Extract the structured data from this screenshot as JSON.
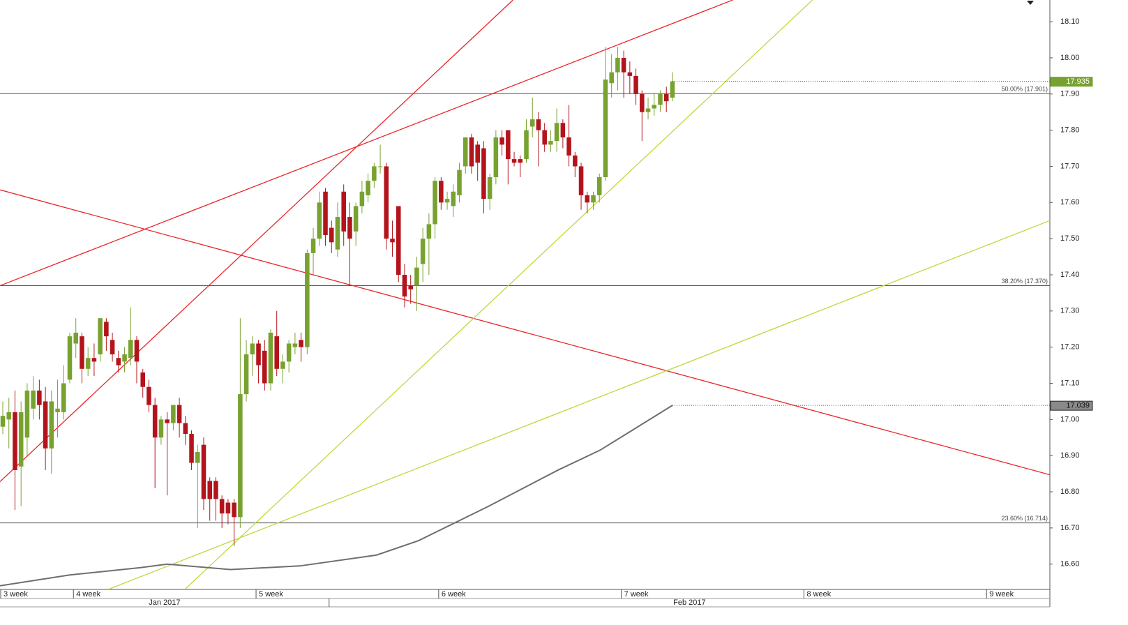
{
  "chart_data": {
    "type": "candlestick",
    "up_color": "#78a22f",
    "down_color": "#b3141c",
    "open": [
      16.98,
      17.0,
      17.02,
      16.87,
      16.95,
      17.03,
      17.08,
      17.05,
      16.92,
      17.02,
      17.02,
      17.11,
      17.21,
      17.23,
      17.14,
      17.17,
      17.18,
      17.27,
      17.22,
      17.17,
      17.16,
      17.17,
      17.22,
      17.13,
      17.09,
      17.04,
      16.95,
      17.0,
      16.99,
      17.04,
      16.99,
      16.96,
      16.88,
      16.93,
      16.83,
      16.83,
      16.78,
      16.77,
      16.77,
      16.73,
      17.07,
      17.18,
      17.21,
      17.19,
      17.1,
      17.23,
      17.14,
      17.16,
      17.2,
      17.22,
      17.2,
      17.46,
      17.5,
      17.63,
      17.53,
      17.47,
      17.63,
      17.56,
      17.52,
      17.59,
      17.62,
      17.66,
      17.7,
      17.7,
      17.5,
      17.59,
      17.4,
      17.37,
      17.37,
      17.43,
      17.5,
      17.54,
      17.66,
      17.6,
      17.59,
      17.62,
      17.7,
      17.78,
      17.76,
      17.75,
      17.61,
      17.67,
      17.78,
      17.8,
      17.72,
      17.72,
      17.72,
      17.81,
      17.83,
      17.8,
      17.76,
      17.77,
      17.82,
      17.78,
      17.73,
      17.7,
      17.62,
      17.6,
      17.62,
      17.67,
      17.93,
      17.96,
      18.0,
      17.96,
      17.95,
      17.9,
      17.85,
      17.86,
      17.87,
      17.9,
      17.89
    ],
    "high": [
      17.05,
      17.06,
      17.08,
      17.05,
      17.1,
      17.12,
      17.11,
      17.09,
      17.08,
      17.11,
      17.15,
      17.24,
      17.28,
      17.24,
      17.2,
      17.21,
      17.28,
      17.28,
      17.24,
      17.19,
      17.2,
      17.31,
      17.23,
      17.14,
      17.11,
      17.06,
      17.01,
      17.02,
      17.04,
      17.06,
      17.01,
      16.97,
      16.93,
      16.95,
      16.84,
      16.84,
      16.79,
      16.78,
      16.78,
      17.28,
      17.22,
      17.23,
      17.22,
      17.22,
      17.25,
      17.3,
      17.18,
      17.22,
      17.24,
      17.24,
      17.47,
      17.53,
      17.63,
      17.64,
      17.55,
      17.6,
      17.65,
      17.6,
      17.6,
      17.66,
      17.68,
      17.71,
      17.76,
      17.71,
      17.55,
      17.59,
      17.43,
      17.4,
      17.45,
      17.53,
      17.57,
      17.67,
      17.67,
      17.63,
      17.65,
      17.71,
      17.78,
      17.79,
      17.77,
      17.77,
      17.68,
      17.8,
      17.8,
      17.8,
      17.74,
      17.73,
      17.83,
      17.89,
      17.85,
      17.82,
      17.8,
      17.86,
      17.83,
      17.87,
      17.74,
      17.71,
      17.63,
      17.63,
      17.68,
      18.03,
      18.01,
      18.03,
      18.02,
      17.99,
      17.97,
      17.91,
      17.89,
      17.9,
      17.91,
      17.92,
      17.96
    ],
    "low": [
      16.96,
      16.92,
      16.75,
      16.76,
      16.9,
      17.0,
      17.0,
      16.86,
      16.85,
      16.95,
      17.0,
      17.1,
      17.17,
      17.1,
      17.12,
      17.12,
      17.16,
      17.19,
      17.16,
      17.13,
      17.13,
      17.15,
      17.1,
      17.06,
      17.02,
      16.81,
      16.93,
      16.79,
      16.97,
      16.95,
      16.93,
      16.86,
      16.7,
      16.75,
      16.72,
      16.72,
      16.7,
      16.71,
      16.65,
      16.7,
      17.05,
      17.12,
      17.1,
      17.08,
      17.08,
      17.12,
      17.1,
      17.13,
      17.18,
      17.16,
      17.18,
      17.4,
      17.48,
      17.48,
      17.46,
      17.45,
      17.48,
      17.37,
      17.48,
      17.57,
      17.6,
      17.64,
      17.68,
      17.47,
      17.45,
      17.38,
      17.31,
      17.32,
      17.3,
      17.38,
      17.4,
      17.5,
      17.58,
      17.58,
      17.56,
      17.6,
      17.68,
      17.68,
      17.66,
      17.57,
      17.58,
      17.65,
      17.73,
      17.65,
      17.7,
      17.67,
      17.71,
      17.78,
      17.7,
      17.74,
      17.74,
      17.74,
      17.75,
      17.7,
      17.67,
      17.58,
      17.57,
      17.58,
      17.6,
      17.66,
      17.89,
      17.91,
      17.89,
      17.9,
      17.87,
      17.77,
      17.83,
      17.84,
      17.85,
      17.85,
      17.88
    ],
    "close": [
      17.01,
      17.02,
      16.86,
      17.02,
      17.08,
      17.08,
      17.04,
      16.92,
      17.05,
      17.03,
      17.1,
      17.23,
      17.24,
      17.14,
      17.17,
      17.16,
      17.28,
      17.23,
      17.18,
      17.15,
      17.18,
      17.22,
      17.16,
      17.09,
      17.04,
      16.95,
      17.0,
      16.99,
      17.04,
      16.99,
      16.96,
      16.88,
      16.91,
      16.78,
      16.78,
      16.78,
      16.74,
      16.74,
      16.73,
      17.07,
      17.18,
      17.21,
      17.15,
      17.1,
      17.24,
      17.14,
      17.16,
      17.21,
      17.21,
      17.2,
      17.46,
      17.5,
      17.6,
      17.51,
      17.49,
      17.56,
      17.52,
      17.5,
      17.59,
      17.63,
      17.66,
      17.7,
      17.7,
      17.5,
      17.49,
      17.4,
      17.34,
      17.36,
      17.42,
      17.5,
      17.54,
      17.66,
      17.6,
      17.61,
      17.63,
      17.69,
      17.78,
      17.7,
      17.71,
      17.61,
      17.67,
      17.78,
      17.76,
      17.72,
      17.71,
      17.71,
      17.8,
      17.83,
      17.8,
      17.76,
      17.77,
      17.82,
      17.78,
      17.73,
      17.7,
      17.62,
      17.6,
      17.62,
      17.67,
      17.94,
      17.96,
      18.0,
      17.96,
      17.95,
      17.9,
      17.85,
      17.86,
      17.87,
      17.9,
      17.88,
      17.935
    ],
    "moving_average": {
      "color": "#6e6e6e",
      "x": [
        -0.46,
        11,
        22.5,
        27,
        37.4,
        48.8,
        61.4,
        68.3,
        79.8,
        91.2,
        98.1,
        110
      ],
      "values": [
        16.54,
        16.57,
        16.59,
        16.6,
        16.585,
        16.595,
        16.625,
        16.665,
        16.76,
        16.86,
        16.915,
        17.039
      ]
    },
    "trendlines": [
      {
        "color": "#e8262b",
        "x": [
          -0.46,
          119.9
        ],
        "values": [
          17.37,
          18.16
        ]
      },
      {
        "color": "#e8262b",
        "x": [
          -0.46,
          83.8
        ],
        "values": [
          16.828,
          18.16
        ]
      },
      {
        "color": "#e8262b",
        "x": [
          -0.46,
          172
        ],
        "values": [
          17.635,
          16.847
        ]
      },
      {
        "color": "#b9dc3c",
        "x": [
          29.9,
          133
        ],
        "values": [
          16.53,
          18.16
        ]
      },
      {
        "color": "#b9dc3c",
        "x": [
          17.3,
          172
        ],
        "values": [
          16.53,
          17.55
        ]
      }
    ],
    "levels": [
      {
        "value": 17.901,
        "label": "50.00% (17.901)"
      },
      {
        "value": 17.37,
        "label": "38.20% (17.370)"
      },
      {
        "value": 16.714,
        "label": "23.60% (16.714)"
      }
    ],
    "xlim": [
      -0.46,
      172
    ],
    "xticks": [
      {
        "value": -0.46,
        "label": "3 week"
      },
      {
        "value": 11.6,
        "label": "4 week"
      },
      {
        "value": 41.6,
        "label": "5 week"
      },
      {
        "value": 71.6,
        "label": "6 week"
      },
      {
        "value": 101.6,
        "label": "7 week"
      },
      {
        "value": 131.6,
        "label": "8 week"
      },
      {
        "value": 161.6,
        "label": "9 week"
      }
    ],
    "month_breaks": [
      53.6
    ],
    "month_labels": [
      "Jan 2017",
      "Feb 2017"
    ],
    "ylim": [
      16.53,
      18.16
    ],
    "yticks": [
      {
        "value": 16.6,
        "label": "16.60"
      },
      {
        "value": 16.7,
        "label": "16.70"
      },
      {
        "value": 16.8,
        "label": "16.80"
      },
      {
        "value": 16.9,
        "label": "16.90"
      },
      {
        "value": 17.0,
        "label": "17.00"
      },
      {
        "value": 17.1,
        "label": "17.10"
      },
      {
        "value": 17.2,
        "label": "17.20"
      },
      {
        "value": 17.3,
        "label": "17.30"
      },
      {
        "value": 17.4,
        "label": "17.40"
      },
      {
        "value": 17.5,
        "label": "17.50"
      },
      {
        "value": 17.6,
        "label": "17.60"
      },
      {
        "value": 17.7,
        "label": "17.70"
      },
      {
        "value": 17.8,
        "label": "17.80"
      },
      {
        "value": 17.9,
        "label": "17.90"
      },
      {
        "value": 18.0,
        "label": "18.00"
      },
      {
        "value": 18.1,
        "label": "18.10"
      }
    ]
  }
}
